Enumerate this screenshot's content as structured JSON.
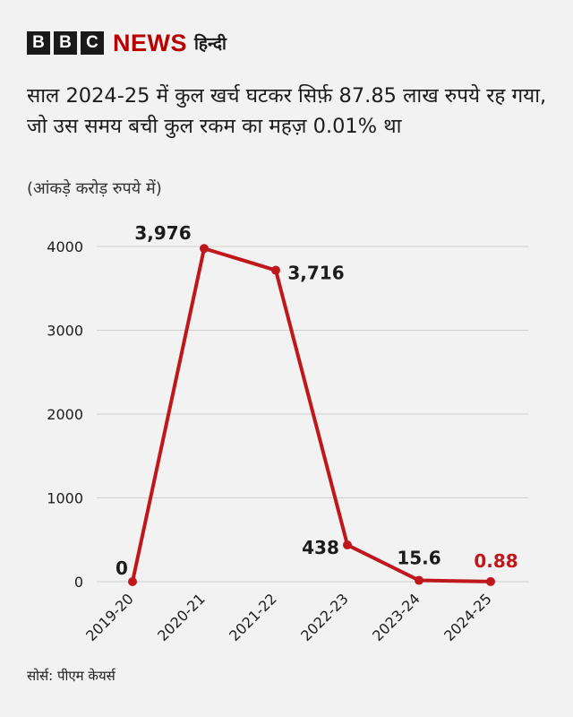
{
  "brand": {
    "letters": [
      "B",
      "B",
      "C"
    ],
    "news": "NEWS",
    "lang": "हिन्दी"
  },
  "title": "साल 2024-25 में कुल खर्च घटकर सिर्फ़ 87.85 लाख रुपये रह गया, जो उस समय बची कुल रकम का महज़ 0.01% था",
  "subtitle": "(आंकड़े करोड़ रुपये में)",
  "source": "सोर्स: पीएम केयर्स",
  "colors": {
    "line": "#c0171d",
    "grid": "#cfcfcf",
    "highlight_label": "#c0171d",
    "label": "#1c1c1c"
  },
  "chart_data": {
    "type": "line",
    "categories": [
      "2019-20",
      "2020-21",
      "2021-22",
      "2022-23",
      "2023-24",
      "2024-25"
    ],
    "values": [
      0,
      3976,
      3716,
      438,
      15.6,
      0.88
    ],
    "data_labels": [
      "0",
      "3,976",
      "3,716",
      "438",
      "15.6",
      "0.88"
    ],
    "yticks": [
      0,
      1000,
      2000,
      3000,
      4000
    ],
    "ylim": [
      0,
      4000
    ],
    "grid": true,
    "title": "साल 2024-25 में कुल खर्च घटकर सिर्फ़ 87.85 लाख रुपये रह गया, जो उस समय बची कुल रकम का महज़ 0.01% था",
    "ylabel": "(आंकड़े करोड़ रुपये में)",
    "xlabel": ""
  }
}
